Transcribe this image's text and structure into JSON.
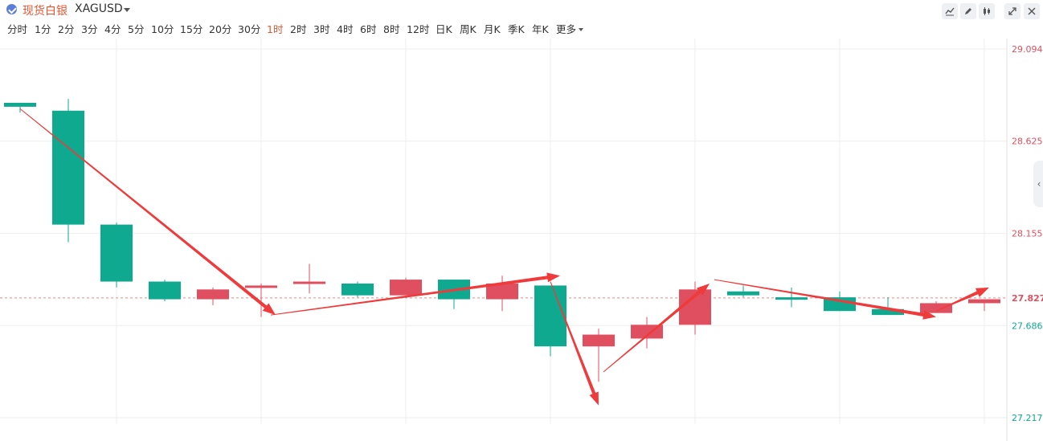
{
  "header": {
    "title": "现货白银",
    "symbol": "XAGUSD",
    "toolbar_icons": [
      "line-tool-icon",
      "pen-icon",
      "candle-style-icon",
      "expand-icon",
      "close-icon"
    ]
  },
  "timeframes": [
    "分时",
    "1分",
    "2分",
    "3分",
    "4分",
    "5分",
    "10分",
    "15分",
    "20分",
    "30分",
    "1时",
    "2时",
    "3时",
    "4时",
    "6时",
    "8时",
    "12时",
    "日K",
    "周K",
    "月K",
    "季K",
    "年K",
    "更多"
  ],
  "active_timeframe": "1时",
  "colors": {
    "up": "#e04f5f",
    "down": "#0fa98f",
    "arrow": "#ef3b3b",
    "grid": "#eeeeee",
    "current_line": "#e88a8a"
  },
  "chart_data": {
    "type": "candlestick",
    "ylim": [
      27.217,
      29.094
    ],
    "y_ticks": [
      "29.094",
      "28.625",
      "28.155",
      "27.686",
      "27.217"
    ],
    "current_price": "27.827",
    "candles": [
      {
        "o": 28.82,
        "h": 28.82,
        "l": 28.77,
        "c": 28.8
      },
      {
        "o": 28.78,
        "h": 28.84,
        "l": 28.11,
        "c": 28.2
      },
      {
        "o": 28.2,
        "h": 28.21,
        "l": 27.88,
        "c": 27.91
      },
      {
        "o": 27.91,
        "h": 27.92,
        "l": 27.81,
        "c": 27.82
      },
      {
        "o": 27.82,
        "h": 27.88,
        "l": 27.79,
        "c": 27.87
      },
      {
        "o": 27.88,
        "h": 27.9,
        "l": 27.73,
        "c": 27.89
      },
      {
        "o": 27.9,
        "h": 28.0,
        "l": 27.85,
        "c": 27.91
      },
      {
        "o": 27.9,
        "h": 27.91,
        "l": 27.83,
        "c": 27.84
      },
      {
        "o": 27.84,
        "h": 27.93,
        "l": 27.84,
        "c": 27.92
      },
      {
        "o": 27.92,
        "h": 27.92,
        "l": 27.77,
        "c": 27.82
      },
      {
        "o": 27.82,
        "h": 27.94,
        "l": 27.76,
        "c": 27.9
      },
      {
        "o": 27.89,
        "h": 27.89,
        "l": 27.53,
        "c": 27.58
      },
      {
        "o": 27.58,
        "h": 27.67,
        "l": 27.4,
        "c": 27.64
      },
      {
        "o": 27.62,
        "h": 27.73,
        "l": 27.57,
        "c": 27.69
      },
      {
        "o": 27.69,
        "h": 27.91,
        "l": 27.64,
        "c": 27.87
      },
      {
        "o": 27.86,
        "h": 27.89,
        "l": 27.83,
        "c": 27.84
      },
      {
        "o": 27.83,
        "h": 27.88,
        "l": 27.78,
        "c": 27.82
      },
      {
        "o": 27.83,
        "h": 27.86,
        "l": 27.76,
        "c": 27.76
      },
      {
        "o": 27.77,
        "h": 27.83,
        "l": 27.75,
        "c": 27.74
      },
      {
        "o": 27.75,
        "h": 27.81,
        "l": 27.75,
        "c": 27.8
      },
      {
        "o": 27.8,
        "h": 27.82,
        "l": 27.76,
        "c": 27.82
      }
    ],
    "trend_arrows": [
      {
        "from": [
          0,
          28.79
        ],
        "to": [
          5.3,
          27.74
        ]
      },
      {
        "from": [
          5.2,
          27.74
        ],
        "to": [
          11.2,
          27.94
        ]
      },
      {
        "from": [
          11.0,
          27.91
        ],
        "to": [
          12.0,
          27.28
        ]
      },
      {
        "from": [
          12.1,
          27.45
        ],
        "to": [
          14.3,
          27.9
        ]
      },
      {
        "from": [
          14.4,
          27.92
        ],
        "to": [
          19.0,
          27.73
        ]
      },
      {
        "from": [
          19.0,
          27.76
        ],
        "to": [
          20.1,
          27.88
        ]
      }
    ]
  }
}
